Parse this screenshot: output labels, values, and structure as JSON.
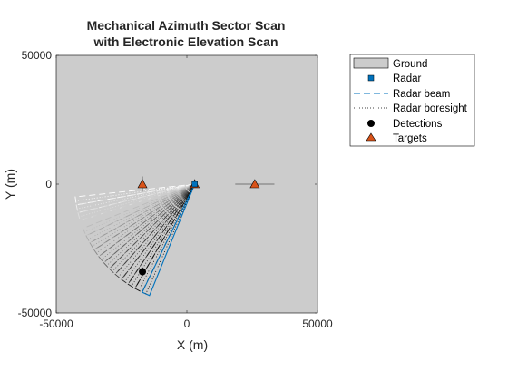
{
  "chart_data": {
    "type": "scatter",
    "title_lines": [
      "Mechanical Azimuth Sector Scan",
      "with Electronic Elevation Scan"
    ],
    "xlabel": "X (m)",
    "ylabel": "Y (m)",
    "xlim": [
      -50000,
      50000
    ],
    "ylim": [
      -50000,
      50000
    ],
    "xticks": [
      -50000,
      0,
      50000
    ],
    "yticks": [
      -50000,
      0,
      50000
    ],
    "xtick_labels": [
      "-50000",
      "0",
      "50000"
    ],
    "ytick_labels": [
      "-50000",
      "0",
      "50000"
    ],
    "grid": false,
    "background_color": "#cccccc",
    "legend_position": "outside-right",
    "legend": [
      {
        "label": "Ground",
        "marker": "patch"
      },
      {
        "label": "Radar",
        "marker": "square"
      },
      {
        "label": "Radar beam",
        "marker": "dashed-line"
      },
      {
        "label": "Radar boresight",
        "marker": "dotted-line"
      },
      {
        "label": "Detections",
        "marker": "circle"
      },
      {
        "label": "Targets",
        "marker": "triangle"
      }
    ],
    "radar": {
      "x": 3000,
      "y": 0
    },
    "targets": [
      {
        "x": -17000,
        "y": 0,
        "vx": 0,
        "vy": 3000
      },
      {
        "x": 3000,
        "y": 0,
        "vx": 0,
        "vy": 0
      },
      {
        "x": 26000,
        "y": 0,
        "vx": 7500,
        "vy": 0
      }
    ],
    "detections": [
      {
        "x": -17000,
        "y": -34000
      }
    ],
    "beam_sweep": {
      "origin": {
        "x": 3000,
        "y": 0
      },
      "range": 46000,
      "start_angle_deg": 188,
      "end_angle_deg": 246,
      "count": 16,
      "half_width_deg": 1.9,
      "current_color": "#0072bd"
    }
  }
}
